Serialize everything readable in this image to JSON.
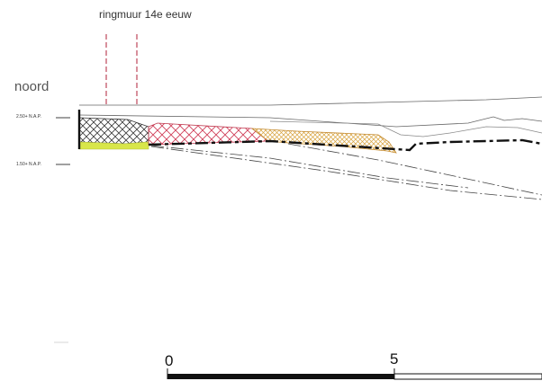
{
  "labels": {
    "wall_title": "ringmuur 14e eeuw",
    "side": "noord",
    "level_top": "2.50+ N.A.P.",
    "level_bottom": "1.50+ N.A.P.",
    "scale_start": "0",
    "scale_mid": "5"
  },
  "colors": {
    "wall_marker": "#b0203a",
    "hatch_black": "#3a3a3a",
    "hatch_red": "#d0405a",
    "hatch_orange": "#d7a23c",
    "fill_yellow": "#d8e64a",
    "line": "#111111",
    "thin_line": "#555555"
  }
}
